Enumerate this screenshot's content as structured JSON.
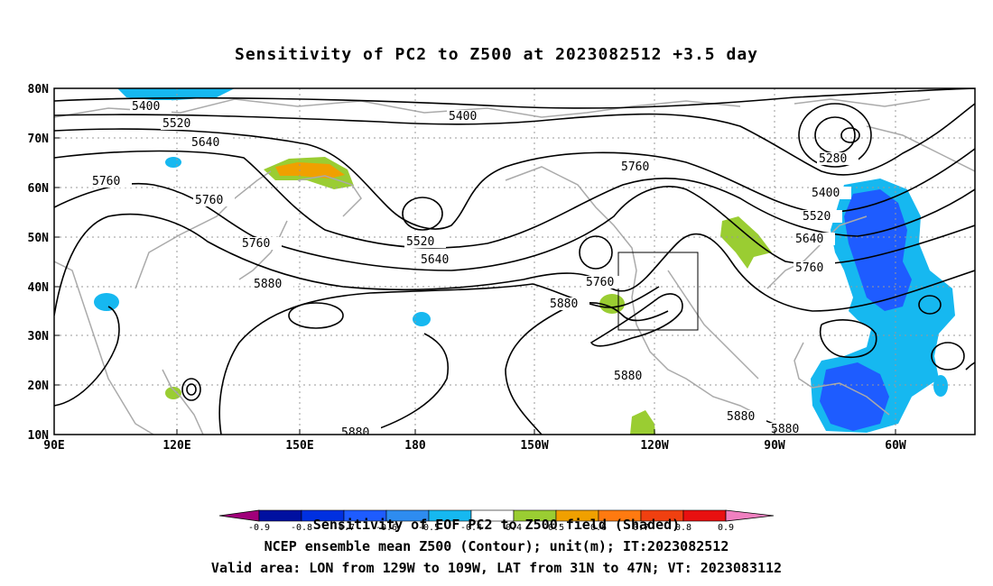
{
  "title": "Sensitivity of PC2 to Z500 at 2023082512 +3.5 day",
  "captions": {
    "line1": "Sensitivity of EOF PC2 to Z500 field (Shaded)",
    "line2": "NCEP ensemble mean Z500 (Contour); unit(m); IT:2023082512",
    "line3": "Valid area: LON from 129W to 109W, LAT from 31N to 47N; VT: 2023083112"
  },
  "axes": {
    "lat_labels": [
      "80N",
      "70N",
      "60N",
      "50N",
      "40N",
      "30N",
      "20N",
      "10N"
    ],
    "lon_labels": [
      "90E",
      "120E",
      "150E",
      "180",
      "150W",
      "120W",
      "90W",
      "60W"
    ],
    "lat_values": [
      80,
      70,
      60,
      50,
      40,
      30,
      20,
      10
    ],
    "lon_values": [
      90,
      120,
      150,
      180,
      210,
      240,
      270,
      300
    ],
    "lon_range": [
      90,
      315
    ],
    "lat_range": [
      10,
      80
    ],
    "grid": "dotted"
  },
  "colorbar": {
    "labels": [
      "-0.9",
      "-0.8",
      "-0.7",
      "-0.6",
      "-0.5",
      "-0.4",
      "0.4",
      "0.5",
      "0.6",
      "0.7",
      "0.8",
      "0.9"
    ],
    "colors": [
      "#a0007a",
      "#0010a0",
      "#0030e0",
      "#1e5cff",
      "#2e8cf0",
      "#16b8f0",
      "#00d2ff",
      "#ffffff",
      "#9acd32",
      "#f0a000",
      "#ff7a10",
      "#f04010",
      "#e81010",
      "#ff1a1a",
      "#f080c0"
    ]
  },
  "contour_labels": [
    "5400",
    "5520",
    "5640",
    "5760",
    "5880",
    "5280"
  ],
  "valid_box": {
    "lon_west": "129W",
    "lon_east": "109W",
    "lat_south": "31N",
    "lat_north": "47N"
  },
  "colors": {
    "contour": "#000000",
    "coast": "#aaaaaa",
    "grid": "#999999",
    "neg_strong": "#0030e0",
    "neg_weak": "#16b8f0",
    "pos_weak": "#9acd32",
    "pos_mid": "#f0a000"
  }
}
